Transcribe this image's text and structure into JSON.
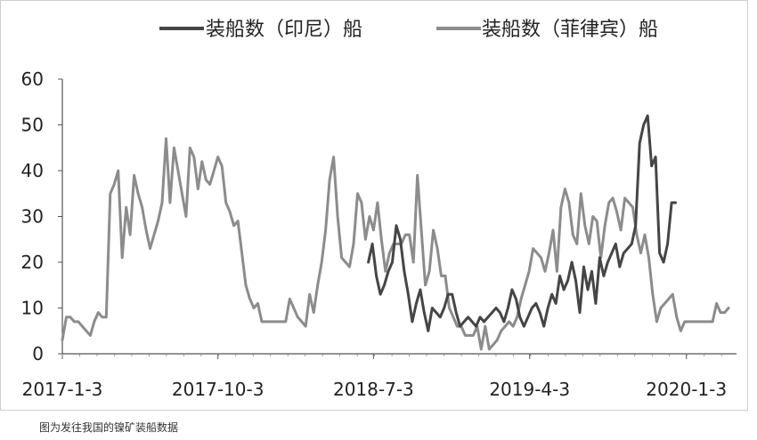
{
  "caption": "图为发往我国的镍矿装船数据",
  "chart_data": {
    "type": "line",
    "legend_position": "top",
    "grid": false,
    "ylim": [
      0,
      60
    ],
    "yticks": [
      "0",
      "10",
      "20",
      "30",
      "40",
      "50",
      "60"
    ],
    "xticks": [
      "2017-1-3",
      "2017-10-3",
      "2018-7-3",
      "2019-4-3",
      "2020-1-3"
    ],
    "x_range": [
      "2017-01-03",
      "2020-03-31"
    ],
    "series": [
      {
        "name": "装船数（印尼）船",
        "color": "#454545",
        "points": [
          [
            "2018-06-24",
            20
          ],
          [
            "2018-07-01",
            24
          ],
          [
            "2018-07-08",
            17
          ],
          [
            "2018-07-15",
            13
          ],
          [
            "2018-07-22",
            15
          ],
          [
            "2018-07-29",
            18
          ],
          [
            "2018-08-05",
            20
          ],
          [
            "2018-08-12",
            28
          ],
          [
            "2018-08-19",
            25
          ],
          [
            "2018-08-26",
            18
          ],
          [
            "2018-09-02",
            13
          ],
          [
            "2018-09-09",
            7
          ],
          [
            "2018-09-16",
            11
          ],
          [
            "2018-09-23",
            14
          ],
          [
            "2018-09-30",
            9
          ],
          [
            "2018-10-07",
            5
          ],
          [
            "2018-10-14",
            10
          ],
          [
            "2018-10-21",
            9
          ],
          [
            "2018-10-28",
            8
          ],
          [
            "2018-11-04",
            10
          ],
          [
            "2018-11-11",
            13
          ],
          [
            "2018-11-18",
            13
          ],
          [
            "2018-11-25",
            9
          ],
          [
            "2018-12-02",
            6
          ],
          [
            "2018-12-09",
            7
          ],
          [
            "2018-12-16",
            8
          ],
          [
            "2018-12-23",
            7
          ],
          [
            "2018-12-30",
            6
          ],
          [
            "2019-01-06",
            8
          ],
          [
            "2019-01-13",
            7
          ],
          [
            "2019-01-20",
            8
          ],
          [
            "2019-01-27",
            9
          ],
          [
            "2019-02-03",
            10
          ],
          [
            "2019-02-10",
            9
          ],
          [
            "2019-02-17",
            7
          ],
          [
            "2019-02-24",
            10
          ],
          [
            "2019-03-03",
            14
          ],
          [
            "2019-03-10",
            12
          ],
          [
            "2019-03-17",
            8
          ],
          [
            "2019-03-24",
            6
          ],
          [
            "2019-03-31",
            8
          ],
          [
            "2019-04-07",
            10
          ],
          [
            "2019-04-14",
            11
          ],
          [
            "2019-04-21",
            9
          ],
          [
            "2019-04-28",
            6
          ],
          [
            "2019-05-05",
            10
          ],
          [
            "2019-05-12",
            13
          ],
          [
            "2019-05-19",
            11
          ],
          [
            "2019-05-26",
            17
          ],
          [
            "2019-06-02",
            14
          ],
          [
            "2019-06-09",
            16
          ],
          [
            "2019-06-16",
            20
          ],
          [
            "2019-06-23",
            16
          ],
          [
            "2019-06-30",
            9
          ],
          [
            "2019-07-07",
            19
          ],
          [
            "2019-07-14",
            14
          ],
          [
            "2019-07-21",
            18
          ],
          [
            "2019-07-28",
            11
          ],
          [
            "2019-08-04",
            21
          ],
          [
            "2019-08-11",
            17
          ],
          [
            "2019-08-18",
            20
          ],
          [
            "2019-08-25",
            22
          ],
          [
            "2019-09-01",
            24
          ],
          [
            "2019-09-08",
            19
          ],
          [
            "2019-09-15",
            22
          ],
          [
            "2019-09-22",
            23
          ],
          [
            "2019-09-29",
            24
          ],
          [
            "2019-10-06",
            28
          ],
          [
            "2019-10-13",
            46
          ],
          [
            "2019-10-20",
            50
          ],
          [
            "2019-10-27",
            52
          ],
          [
            "2019-11-03",
            41
          ],
          [
            "2019-11-10",
            43
          ],
          [
            "2019-11-17",
            22
          ],
          [
            "2019-11-24",
            20
          ],
          [
            "2019-12-01",
            24
          ],
          [
            "2019-12-08",
            33
          ],
          [
            "2019-12-15",
            33
          ]
        ]
      },
      {
        "name": "装船数（菲律宾）船",
        "color": "#8c8c8c",
        "points": [
          [
            "2017-01-03",
            3
          ],
          [
            "2017-01-10",
            8
          ],
          [
            "2017-01-17",
            8
          ],
          [
            "2017-01-24",
            7
          ],
          [
            "2017-01-31",
            7
          ],
          [
            "2017-02-07",
            6
          ],
          [
            "2017-02-14",
            5
          ],
          [
            "2017-02-21",
            4
          ],
          [
            "2017-02-28",
            7
          ],
          [
            "2017-03-07",
            9
          ],
          [
            "2017-03-14",
            8
          ],
          [
            "2017-03-21",
            8
          ],
          [
            "2017-03-28",
            35
          ],
          [
            "2017-04-04",
            37
          ],
          [
            "2017-04-11",
            40
          ],
          [
            "2017-04-18",
            21
          ],
          [
            "2017-04-25",
            32
          ],
          [
            "2017-05-02",
            26
          ],
          [
            "2017-05-09",
            39
          ],
          [
            "2017-05-16",
            35
          ],
          [
            "2017-05-23",
            32
          ],
          [
            "2017-05-30",
            27
          ],
          [
            "2017-06-06",
            23
          ],
          [
            "2017-06-13",
            26
          ],
          [
            "2017-06-20",
            29
          ],
          [
            "2017-06-27",
            33
          ],
          [
            "2017-07-04",
            47
          ],
          [
            "2017-07-11",
            33
          ],
          [
            "2017-07-18",
            45
          ],
          [
            "2017-07-25",
            40
          ],
          [
            "2017-08-01",
            35
          ],
          [
            "2017-08-08",
            30
          ],
          [
            "2017-08-15",
            45
          ],
          [
            "2017-08-22",
            43
          ],
          [
            "2017-08-29",
            36
          ],
          [
            "2017-09-05",
            42
          ],
          [
            "2017-09-12",
            38
          ],
          [
            "2017-09-19",
            37
          ],
          [
            "2017-09-26",
            40
          ],
          [
            "2017-10-03",
            43
          ],
          [
            "2017-10-10",
            41
          ],
          [
            "2017-10-17",
            33
          ],
          [
            "2017-10-24",
            31
          ],
          [
            "2017-10-31",
            28
          ],
          [
            "2017-11-07",
            29
          ],
          [
            "2017-11-14",
            22
          ],
          [
            "2017-11-21",
            15
          ],
          [
            "2017-11-28",
            12
          ],
          [
            "2017-12-05",
            10
          ],
          [
            "2017-12-12",
            11
          ],
          [
            "2017-12-19",
            7
          ],
          [
            "2017-12-26",
            7
          ],
          [
            "2018-01-02",
            7
          ],
          [
            "2018-01-09",
            7
          ],
          [
            "2018-01-16",
            7
          ],
          [
            "2018-01-23",
            7
          ],
          [
            "2018-01-30",
            7
          ],
          [
            "2018-02-06",
            12
          ],
          [
            "2018-02-13",
            10
          ],
          [
            "2018-02-20",
            8
          ],
          [
            "2018-02-27",
            7
          ],
          [
            "2018-03-06",
            6
          ],
          [
            "2018-03-13",
            13
          ],
          [
            "2018-03-20",
            9
          ],
          [
            "2018-03-27",
            15
          ],
          [
            "2018-04-03",
            20
          ],
          [
            "2018-04-10",
            27
          ],
          [
            "2018-04-17",
            38
          ],
          [
            "2018-04-24",
            43
          ],
          [
            "2018-05-01",
            30
          ],
          [
            "2018-05-08",
            21
          ],
          [
            "2018-05-15",
            20
          ],
          [
            "2018-05-22",
            19
          ],
          [
            "2018-05-29",
            24
          ],
          [
            "2018-06-05",
            35
          ],
          [
            "2018-06-12",
            33
          ],
          [
            "2018-06-19",
            25
          ],
          [
            "2018-06-26",
            30
          ],
          [
            "2018-07-03",
            27
          ],
          [
            "2018-07-10",
            33
          ],
          [
            "2018-07-17",
            25
          ],
          [
            "2018-07-24",
            18
          ],
          [
            "2018-07-31",
            22
          ],
          [
            "2018-08-07",
            24
          ],
          [
            "2018-08-14",
            24
          ],
          [
            "2018-08-21",
            24
          ],
          [
            "2018-08-28",
            26
          ],
          [
            "2018-09-04",
            26
          ],
          [
            "2018-09-11",
            20
          ],
          [
            "2018-09-18",
            39
          ],
          [
            "2018-09-25",
            27
          ],
          [
            "2018-10-02",
            15
          ],
          [
            "2018-10-09",
            18
          ],
          [
            "2018-10-16",
            27
          ],
          [
            "2018-10-23",
            23
          ],
          [
            "2018-10-30",
            17
          ],
          [
            "2018-11-06",
            17
          ],
          [
            "2018-11-13",
            10
          ],
          [
            "2018-11-20",
            8
          ],
          [
            "2018-11-27",
            6
          ],
          [
            "2018-12-04",
            6
          ],
          [
            "2018-12-11",
            4
          ],
          [
            "2018-12-18",
            4
          ],
          [
            "2018-12-25",
            4
          ],
          [
            "2019-01-01",
            6
          ],
          [
            "2019-01-08",
            1
          ],
          [
            "2019-01-15",
            6
          ],
          [
            "2019-01-22",
            1
          ],
          [
            "2019-01-29",
            2
          ],
          [
            "2019-02-05",
            3
          ],
          [
            "2019-02-12",
            5
          ],
          [
            "2019-02-19",
            6
          ],
          [
            "2019-02-26",
            7
          ],
          [
            "2019-03-05",
            6
          ],
          [
            "2019-03-12",
            8
          ],
          [
            "2019-03-19",
            12
          ],
          [
            "2019-03-26",
            15
          ],
          [
            "2019-04-02",
            18
          ],
          [
            "2019-04-09",
            23
          ],
          [
            "2019-04-16",
            22
          ],
          [
            "2019-04-23",
            21
          ],
          [
            "2019-04-30",
            18
          ],
          [
            "2019-05-07",
            22
          ],
          [
            "2019-05-14",
            27
          ],
          [
            "2019-05-21",
            18
          ],
          [
            "2019-05-28",
            32
          ],
          [
            "2019-06-04",
            36
          ],
          [
            "2019-06-11",
            33
          ],
          [
            "2019-06-18",
            26
          ],
          [
            "2019-06-25",
            24
          ],
          [
            "2019-07-02",
            35
          ],
          [
            "2019-07-09",
            28
          ],
          [
            "2019-07-16",
            24
          ],
          [
            "2019-07-23",
            30
          ],
          [
            "2019-07-30",
            29
          ],
          [
            "2019-08-06",
            21
          ],
          [
            "2019-08-13",
            28
          ],
          [
            "2019-08-20",
            33
          ],
          [
            "2019-08-27",
            34
          ],
          [
            "2019-09-03",
            31
          ],
          [
            "2019-09-10",
            27
          ],
          [
            "2019-09-17",
            34
          ],
          [
            "2019-09-24",
            33
          ],
          [
            "2019-10-01",
            32
          ],
          [
            "2019-10-08",
            26
          ],
          [
            "2019-10-15",
            22
          ],
          [
            "2019-10-22",
            26
          ],
          [
            "2019-10-29",
            21
          ],
          [
            "2019-11-05",
            13
          ],
          [
            "2019-11-12",
            7
          ],
          [
            "2019-11-19",
            10
          ],
          [
            "2019-11-26",
            11
          ],
          [
            "2019-12-03",
            12
          ],
          [
            "2019-12-10",
            13
          ],
          [
            "2019-12-17",
            8
          ],
          [
            "2019-12-24",
            5
          ],
          [
            "2019-12-31",
            7
          ],
          [
            "2020-01-07",
            7
          ],
          [
            "2020-01-14",
            7
          ],
          [
            "2020-01-21",
            7
          ],
          [
            "2020-01-28",
            7
          ],
          [
            "2020-02-04",
            7
          ],
          [
            "2020-02-11",
            7
          ],
          [
            "2020-02-18",
            7
          ],
          [
            "2020-02-25",
            11
          ],
          [
            "2020-03-03",
            9
          ],
          [
            "2020-03-10",
            9
          ],
          [
            "2020-03-17",
            10
          ]
        ]
      }
    ]
  }
}
